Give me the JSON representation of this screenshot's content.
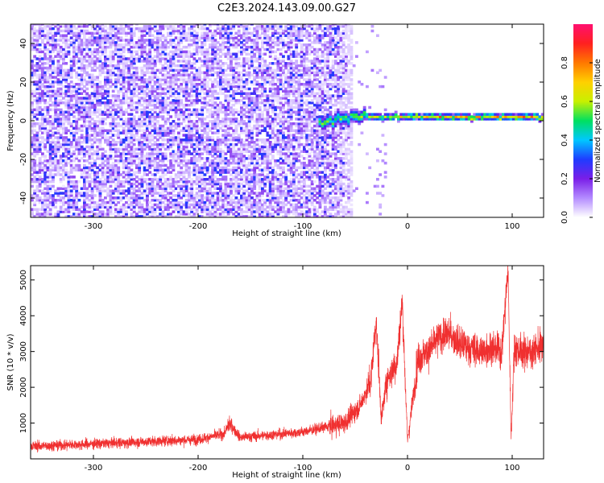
{
  "figure_title": "C2E3.2024.143.09.00.G27",
  "chart_data": [
    {
      "type": "heatmap",
      "xlabel": "Height of straight line (km)",
      "ylabel": "Frequency (Hz)",
      "xlim": [
        -360,
        130
      ],
      "ylim": [
        -50,
        50
      ],
      "xticks": [
        -300,
        -200,
        -100,
        0,
        100
      ],
      "yticks": [
        -40,
        -20,
        0,
        20,
        40
      ],
      "colorbar": {
        "label": "Normalized spectral amplitude",
        "range": [
          0,
          1
        ],
        "ticks": [
          "0.0",
          "0.2",
          "0.4",
          "0.6",
          "0.8"
        ],
        "colormap": "rainbow",
        "stops": [
          "#ffffff",
          "#b48cff",
          "#7a1ee8",
          "#1f3cff",
          "#00c8ff",
          "#00e060",
          "#c8f000",
          "#ffd000",
          "#ff7800",
          "#ff2020",
          "#ff1070"
        ]
      },
      "features": [
        {
          "name": "noise",
          "x_range": [
            -360,
            -55
          ],
          "freq_range": [
            -50,
            50
          ],
          "amplitude_range": [
            0.05,
            0.3
          ]
        },
        {
          "name": "signal",
          "x_range": [
            -85,
            130
          ],
          "center_freq": 1.5,
          "peak_amplitude": 0.9
        }
      ]
    },
    {
      "type": "line",
      "xlabel": "Height of straight line (km)",
      "ylabel": "SNR (10 * v/v)",
      "xlim": [
        -360,
        130
      ],
      "ylim": [
        0,
        5400
      ],
      "xticks": [
        -300,
        -200,
        -100,
        0,
        100
      ],
      "yticks": [
        1000,
        2000,
        3000,
        4000,
        5000
      ],
      "color": "#f03030",
      "series": [
        {
          "x": [
            -360,
            -300,
            -250,
            -200,
            -175,
            -170,
            -160,
            -150,
            -100,
            -60,
            -45,
            -35,
            -30,
            -25,
            -20,
            -10,
            -5,
            0,
            10,
            20,
            30,
            40,
            50,
            60,
            70,
            80,
            90,
            96,
            99,
            102,
            110,
            120,
            130
          ],
          "y": [
            350,
            420,
            480,
            540,
            700,
            1000,
            600,
            620,
            750,
            1000,
            1500,
            2200,
            3900,
            1100,
            2200,
            2700,
            4400,
            500,
            2800,
            3000,
            3400,
            3500,
            3200,
            3100,
            3000,
            3100,
            3000,
            5300,
            600,
            3100,
            3000,
            3000,
            3200
          ]
        }
      ]
    }
  ]
}
